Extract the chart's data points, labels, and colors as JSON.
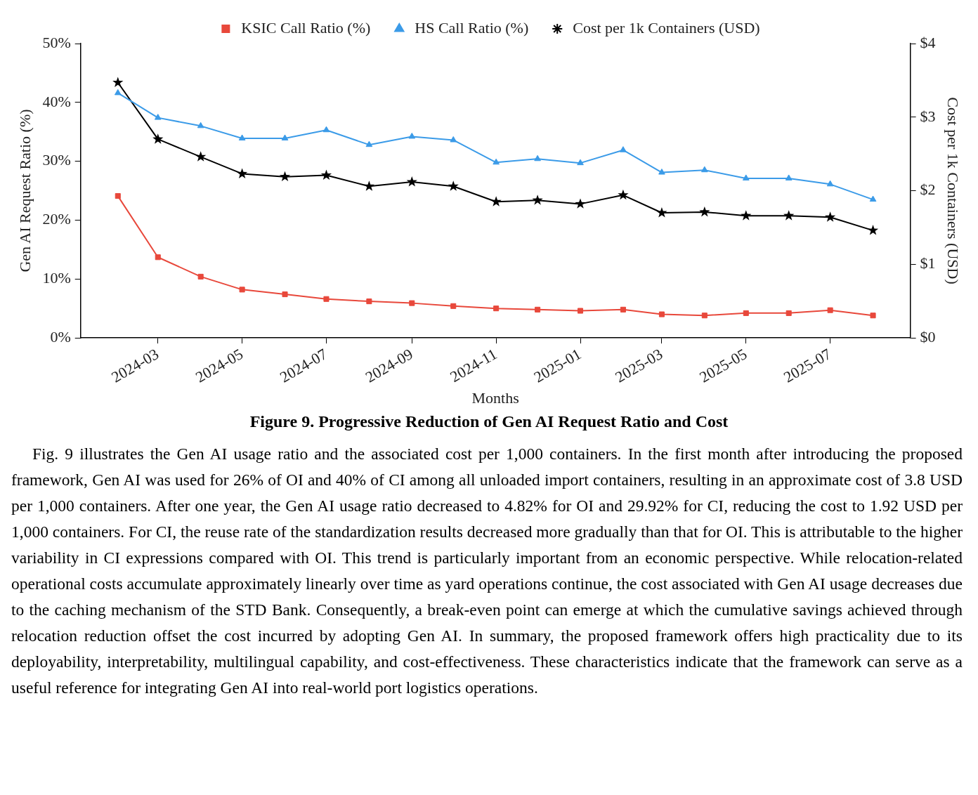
{
  "chart_data": {
    "type": "line",
    "title": "Figure 9. Progressive Reduction of Gen AI Request Ratio and Cost",
    "xlabel": "Months",
    "ylabel": "Gen AI Request Ratio (%)",
    "y2label": "Cost per 1k Containers (USD)",
    "x": [
      "2024-02",
      "2024-03",
      "2024-04",
      "2024-05",
      "2024-06",
      "2024-07",
      "2024-08",
      "2024-09",
      "2024-10",
      "2024-11",
      "2024-12",
      "2025-01",
      "2025-02",
      "2025-03",
      "2025-04",
      "2025-05",
      "2025-06",
      "2025-07",
      "2025-08"
    ],
    "series": [
      {
        "name": "KSIC Call Ratio (%)",
        "color": "#e8483b",
        "marker": "square",
        "values": [
          24.1,
          13.7,
          10.4,
          8.2,
          7.4,
          6.6,
          6.2,
          5.9,
          5.4,
          5.0,
          4.8,
          4.6,
          4.8,
          4.0,
          3.8,
          4.2,
          4.2,
          4.7,
          3.8
        ]
      },
      {
        "name": "HS Call Ratio (%)",
        "color": "#3b9be8",
        "marker": "triangle",
        "values": [
          41.6,
          37.4,
          36.0,
          33.9,
          33.9,
          35.3,
          32.8,
          34.2,
          33.6,
          29.8,
          30.4,
          29.7,
          31.9,
          28.1,
          28.5,
          27.1,
          27.1,
          26.1,
          23.5
        ]
      },
      {
        "name": "Cost per 1k Containers (USD)",
        "color": "#000000",
        "marker": "star",
        "axis": "y2",
        "values": [
          3.47,
          2.7,
          2.46,
          2.23,
          2.19,
          2.21,
          2.06,
          2.12,
          2.06,
          1.85,
          1.87,
          1.82,
          1.94,
          1.7,
          1.71,
          1.66,
          1.66,
          1.64,
          1.46
        ]
      }
    ],
    "xlim": [
      "2024-01-05",
      "2025-08-28"
    ],
    "xticks": [
      "2024-03",
      "2024-05",
      "2024-07",
      "2024-09",
      "2024-11",
      "2025-01",
      "2025-03",
      "2025-05",
      "2025-07"
    ],
    "ylim": [
      0,
      50
    ],
    "yticks": [
      {
        "value": 0,
        "label": "0%"
      },
      {
        "value": 10,
        "label": "10%"
      },
      {
        "value": 20,
        "label": "20%"
      },
      {
        "value": 30,
        "label": "30%"
      },
      {
        "value": 40,
        "label": "40%"
      },
      {
        "value": 50,
        "label": "50%"
      }
    ],
    "y2lim": [
      0,
      4
    ],
    "y2ticks": [
      {
        "value": 0,
        "label": "$0"
      },
      {
        "value": 1,
        "label": "$1"
      },
      {
        "value": 2,
        "label": "$2"
      },
      {
        "value": 3,
        "label": "$3"
      },
      {
        "value": 4,
        "label": "$4"
      }
    ],
    "legend": "top",
    "grid": false,
    "line_style": "solid",
    "annotations": [
      "Fig. 9 illustrates the Gen AI usage ratio and the associated cost per 1,000 containers. In the first month after introducing the proposed framework, Gen AI was used for 26% of OI and 40% of CI among all unloaded import containers, resulting in an approximate cost of 3.8 USD per 1,000 containers. After one year, the Gen AI usage ratio decreased to 4.82% for OI and 29.92% for CI, reducing the cost to 1.92 USD per 1,000 containers. For CI, the reuse rate of the standardization results decreased more gradually than that for OI. This is attributable to the higher variability in CI expressions compared with OI. This trend is particularly important from an economic perspective. While relocation-related operational costs accumulate approximately linearly over time as yard operations continue, the cost associated with Gen AI usage decreases due to the caching mechanism of the STD Bank. Consequently, a break-even point can emerge at which the cumulative savings achieved through relocation reduction offset the cost incurred by adopting Gen AI. In summary, the proposed framework offers high practicality due to its deployability, interpretability, multilingual capability, and cost-effectiveness. These characteristics indicate that the framework can serve as a useful reference for integrating Gen AI into real-world port logistics operations."
    ]
  }
}
